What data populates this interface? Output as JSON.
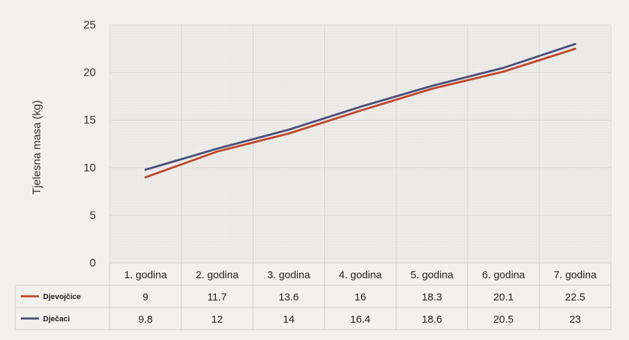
{
  "chart_data": {
    "type": "line",
    "categories": [
      "1. godina",
      "2. godina",
      "3. godina",
      "4. godina",
      "5. godina",
      "6. godina",
      "7. godina"
    ],
    "series": [
      {
        "name": "Djevojčice",
        "values": [
          9,
          11.7,
          13.6,
          16,
          18.3,
          20.1,
          22.5
        ],
        "color": "#c0452a"
      },
      {
        "name": "Dječaci",
        "values": [
          9.8,
          12,
          14,
          16.4,
          18.6,
          20.5,
          23
        ],
        "color": "#4a4f7a"
      }
    ],
    "ylabel": "Tjelesna masa (kg)",
    "ylim": [
      0,
      25
    ],
    "yticks": [
      0,
      5,
      10,
      15,
      20,
      25
    ],
    "grid": true,
    "legend": "data-table-rows",
    "data_table": true
  }
}
